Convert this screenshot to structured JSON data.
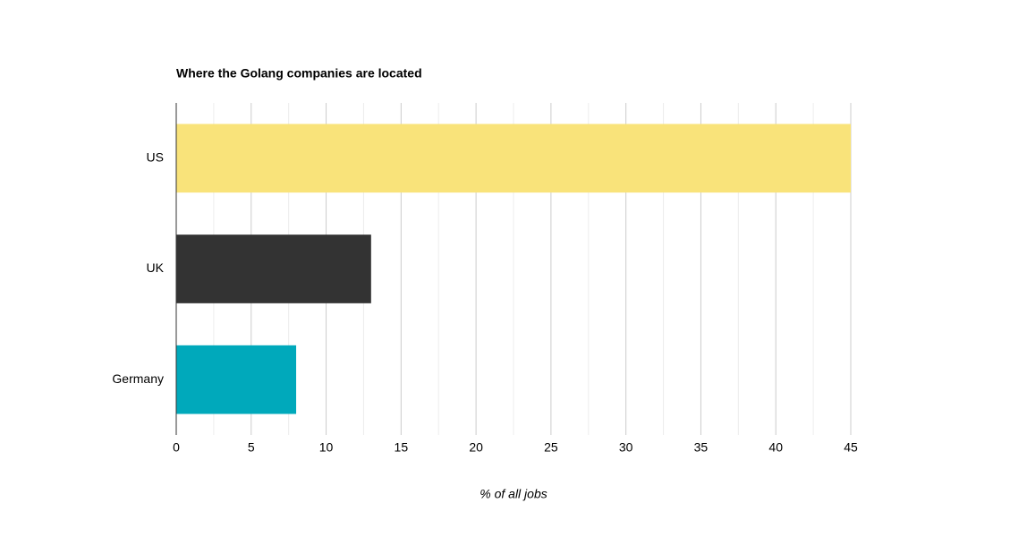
{
  "chart_data": {
    "type": "bar",
    "orientation": "horizontal",
    "title": "Where the Golang companies are located",
    "x_label": "% of all jobs",
    "categories": [
      "US",
      "UK",
      "Germany"
    ],
    "values": [
      45,
      13,
      8
    ],
    "colors": [
      "#f9e37a",
      "#333333",
      "#00a9bb"
    ],
    "xlim": [
      0,
      45
    ],
    "xticks": [
      0,
      5,
      10,
      15,
      20,
      25,
      30,
      35,
      40,
      45
    ],
    "xminorticks": [
      2.5,
      7.5,
      12.5,
      17.5,
      22.5,
      27.5,
      32.5,
      37.5,
      42.5
    ],
    "grid": true
  }
}
